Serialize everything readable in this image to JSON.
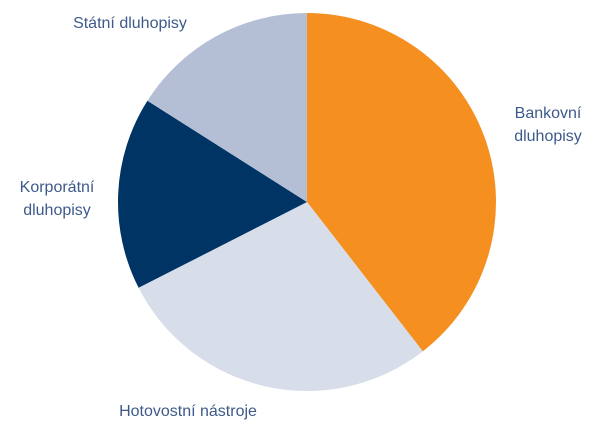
{
  "chart_data": {
    "type": "pie",
    "slices": [
      {
        "label": [
          "Bankovní",
          "dluhopisy"
        ],
        "value": 39.5,
        "color": "#f58f1f"
      },
      {
        "label": [
          "Hotovostní nástroje"
        ],
        "value": 28.0,
        "color": "#d7dde9"
      },
      {
        "label": [
          "Korporátní",
          "dluhopisy"
        ],
        "value": 16.5,
        "color": "#003465"
      },
      {
        "label": [
          "Státní dluhopisy"
        ],
        "value": 16.0,
        "color": "#b4bfd6"
      }
    ],
    "legend": "none"
  }
}
